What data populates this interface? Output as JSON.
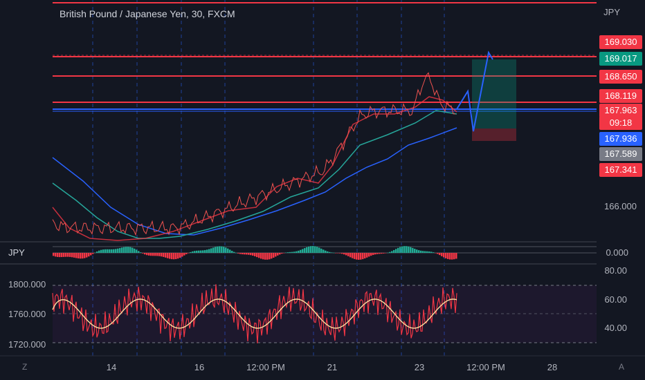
{
  "title": "British Pound / Japanese Yen, 30, FXCM",
  "currency": "JPY",
  "price_tags": [
    {
      "text": "169.030",
      "color": "#f23645"
    },
    {
      "text": "169.017",
      "color": "#089981"
    },
    {
      "text": "168.650",
      "color": "#f23645"
    },
    {
      "text": "168.119",
      "color": "#f23645"
    },
    {
      "text": "167.963",
      "color": "#f23645"
    },
    {
      "text": "09:18",
      "color": "#f23645"
    },
    {
      "text": "167.936",
      "color": "#2962ff"
    },
    {
      "text": "167.589",
      "color": "#787b86"
    },
    {
      "text": "167.341",
      "color": "#f23645"
    }
  ],
  "main_axis_label": "166.000",
  "osc_pane": {
    "label": "JPY",
    "axis_value": "0.000"
  },
  "rsi_pane": {
    "left_values": [
      "1800.000",
      "1760.000",
      "1720.000"
    ],
    "right_values": [
      "80.00",
      "60.00",
      "40.00"
    ]
  },
  "x_ticks": [
    "14",
    "16",
    "12:00 PM",
    "21",
    "23",
    "12:00 PM",
    "28"
  ],
  "corner_left": "Z",
  "corner_right": "A",
  "colors": {
    "background": "#131722",
    "red": "#f23645",
    "blue": "#2962ff",
    "green": "#089981"
  }
}
